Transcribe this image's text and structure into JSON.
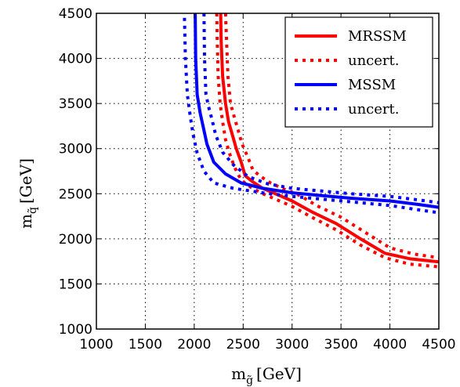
{
  "chart_data": {
    "type": "line",
    "xlabel": "m",
    "xlabel_sub": "g̃",
    "xlabel_unit": "[GeV]",
    "ylabel": "m",
    "ylabel_sub": "q̃",
    "ylabel_unit": "[GeV]",
    "xlim": [
      1000,
      4500
    ],
    "ylim": [
      1000,
      4500
    ],
    "xticks": [
      1000,
      1500,
      2000,
      2500,
      3000,
      3500,
      4000,
      4500
    ],
    "yticks": [
      1000,
      1500,
      2000,
      2500,
      3000,
      3500,
      4000,
      4500
    ],
    "xtick_labels": [
      "1000",
      "1500",
      "2000",
      "2500",
      "3000",
      "3500",
      "4000",
      "4500"
    ],
    "ytick_labels": [
      "1000",
      "1500",
      "2000",
      "2500",
      "3000",
      "3500",
      "4000",
      "4500"
    ],
    "grid": true,
    "legend_position": "top-right",
    "series": [
      {
        "name": "MRSSM",
        "color": "#ff0000",
        "style": "solid",
        "x": [
          2270,
          2275,
          2290,
          2320,
          2350,
          2390,
          2430,
          2480,
          2520,
          2600,
          2700,
          2850,
          3000,
          3200,
          3450,
          3700,
          3950,
          4200,
          4500
        ],
        "y": [
          4500,
          4200,
          3800,
          3500,
          3300,
          3150,
          3000,
          2850,
          2700,
          2630,
          2560,
          2490,
          2420,
          2300,
          2170,
          2000,
          1840,
          1780,
          1745
        ]
      },
      {
        "name": "uncert.",
        "color": "#ff0000",
        "style": "dotted",
        "x": [
          2230,
          2235,
          2245,
          2265,
          2290,
          2320,
          2360,
          2410,
          2480,
          2580,
          2700,
          2850,
          3000,
          3200,
          3450,
          3700,
          3950,
          4200,
          4500
        ],
        "y": [
          4500,
          4200,
          3800,
          3500,
          3300,
          3100,
          2950,
          2800,
          2650,
          2570,
          2500,
          2430,
          2360,
          2240,
          2100,
          1930,
          1790,
          1720,
          1690
        ]
      },
      {
        "name": "uncert.",
        "color": "#ff0000",
        "style": "dotted",
        "x": [
          2320,
          2330,
          2345,
          2370,
          2410,
          2450,
          2490,
          2550,
          2600,
          2680,
          2780,
          2920,
          3080,
          3250,
          3500,
          3750,
          4000,
          4250,
          4500
        ],
        "y": [
          4500,
          4200,
          3800,
          3500,
          3350,
          3200,
          3050,
          2900,
          2760,
          2690,
          2620,
          2550,
          2480,
          2370,
          2240,
          2070,
          1900,
          1830,
          1790
        ]
      },
      {
        "name": "MSSM",
        "color": "#0000ff",
        "style": "solid",
        "x": [
          2010,
          2015,
          2030,
          2060,
          2090,
          2130,
          2200,
          2320,
          2480,
          2700,
          3000,
          3300,
          3600,
          4000,
          4300,
          4500
        ],
        "y": [
          4500,
          4000,
          3600,
          3400,
          3250,
          3050,
          2850,
          2720,
          2620,
          2560,
          2510,
          2480,
          2450,
          2420,
          2380,
          2350
        ]
      },
      {
        "name": "uncert.",
        "color": "#0000ff",
        "style": "dotted",
        "x": [
          1900,
          1910,
          1930,
          1960,
          1990,
          2030,
          2100,
          2200,
          2400,
          2700,
          3000,
          3300,
          3600,
          4000,
          4300,
          4500
        ],
        "y": [
          4450,
          4000,
          3600,
          3350,
          3150,
          2950,
          2750,
          2620,
          2560,
          2510,
          2470,
          2440,
          2410,
          2370,
          2320,
          2290
        ]
      },
      {
        "name": "uncert.",
        "color": "#0000ff",
        "style": "dotted",
        "x": [
          2100,
          2105,
          2120,
          2150,
          2180,
          2220,
          2290,
          2400,
          2550,
          2750,
          3000,
          3300,
          3600,
          4000,
          4300,
          4500
        ],
        "y": [
          4500,
          4000,
          3600,
          3450,
          3330,
          3150,
          2960,
          2820,
          2690,
          2610,
          2560,
          2530,
          2500,
          2470,
          2430,
          2400
        ]
      }
    ],
    "legend": [
      {
        "label": "MRSSM",
        "color": "#ff0000",
        "style": "solid"
      },
      {
        "label": "uncert.",
        "color": "#ff0000",
        "style": "dotted"
      },
      {
        "label": "MSSM",
        "color": "#0000ff",
        "style": "solid"
      },
      {
        "label": "uncert.",
        "color": "#0000ff",
        "style": "dotted"
      }
    ]
  }
}
